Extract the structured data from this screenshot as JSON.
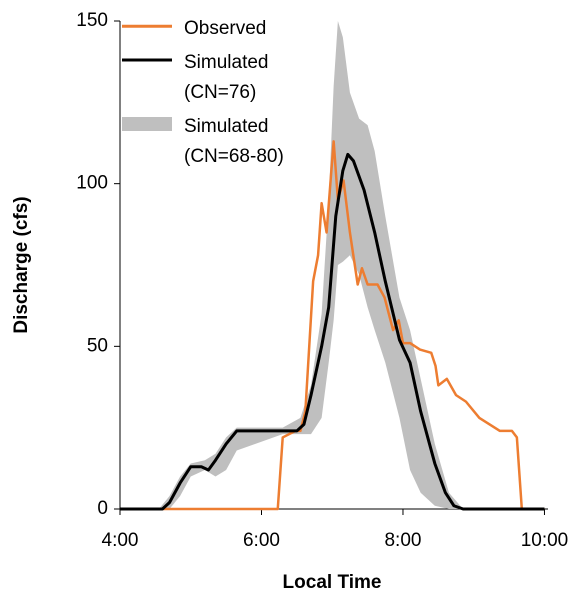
{
  "chart_data": {
    "type": "line",
    "xlabel": "Local Time",
    "ylabel": "Discharge (cfs)",
    "xlim": [
      4,
      10.05
    ],
    "xticks": [
      {
        "value": 4,
        "label": "4:00"
      },
      {
        "value": 6,
        "label": "6:00"
      },
      {
        "value": 8,
        "label": "8:00"
      },
      {
        "value": 10,
        "label": "10:00"
      }
    ],
    "ylim": [
      0,
      150
    ],
    "yticks": [
      0,
      50,
      100,
      150
    ],
    "grid": false,
    "legend": "upper left",
    "series": [
      {
        "name": "Observed",
        "color": "#ed7d31",
        "x": [
          4,
          6.23,
          6.3,
          6.48,
          6.55,
          6.62,
          6.73,
          6.8,
          6.85,
          6.92,
          7.02,
          7.08,
          7.16,
          7.25,
          7.36,
          7.42,
          7.5,
          7.64,
          7.74,
          7.86,
          7.94,
          8.0,
          8.1,
          8.24,
          8.4,
          8.46,
          8.5,
          8.62,
          8.75,
          8.89,
          9.08,
          9.37,
          9.54,
          9.61,
          9.68,
          10
        ],
        "values": [
          0,
          0,
          22,
          24,
          24,
          30,
          70,
          78,
          94,
          85,
          113,
          95,
          101,
          85,
          69,
          74,
          69,
          69,
          65,
          55,
          58,
          51,
          51,
          49,
          48,
          44,
          38,
          40,
          35,
          33,
          28,
          24,
          24,
          22,
          0,
          0
        ]
      },
      {
        "name": "Simulated (CN=76)",
        "color": "#000000",
        "x": [
          4,
          4.6,
          4.7,
          4.85,
          5.0,
          5.15,
          5.25,
          5.35,
          5.5,
          5.65,
          6.0,
          6.5,
          6.6,
          6.7,
          6.85,
          6.95,
          7.05,
          7.15,
          7.22,
          7.3,
          7.45,
          7.6,
          7.75,
          7.95,
          8.1,
          8.25,
          8.45,
          8.6,
          8.72,
          8.85,
          10
        ],
        "values": [
          0,
          0,
          2,
          8,
          13,
          13,
          12,
          15,
          20,
          24,
          24,
          24,
          26,
          35,
          50,
          62,
          90,
          104,
          109,
          107,
          98,
          85,
          70,
          52,
          45,
          30,
          14,
          5,
          1,
          0,
          0
        ]
      },
      {
        "name": "Simulated (CN=68-80)",
        "color": "#bfbfbf",
        "x": [
          4,
          4.55,
          4.7,
          4.85,
          5.0,
          5.2,
          5.35,
          5.5,
          5.65,
          6.3,
          6.55,
          6.7,
          6.85,
          6.95,
          7.02,
          7.08,
          7.15,
          7.25,
          7.38,
          7.5,
          7.6,
          7.75,
          7.95,
          8.1,
          8.25,
          8.45,
          8.65,
          8.85,
          10
        ],
        "upper": [
          0,
          0,
          4,
          10,
          14,
          15,
          17,
          22,
          25,
          25,
          28,
          38,
          60,
          95,
          130,
          150,
          145,
          128,
          120,
          118,
          110,
          90,
          65,
          55,
          40,
          20,
          5,
          0,
          0
        ],
        "lower": [
          0,
          0,
          0,
          4,
          10,
          12,
          10,
          12,
          18,
          23,
          23,
          23,
          28,
          45,
          58,
          75,
          76,
          78,
          72,
          62,
          55,
          45,
          28,
          12,
          5,
          1,
          0,
          0,
          0
        ]
      }
    ]
  }
}
